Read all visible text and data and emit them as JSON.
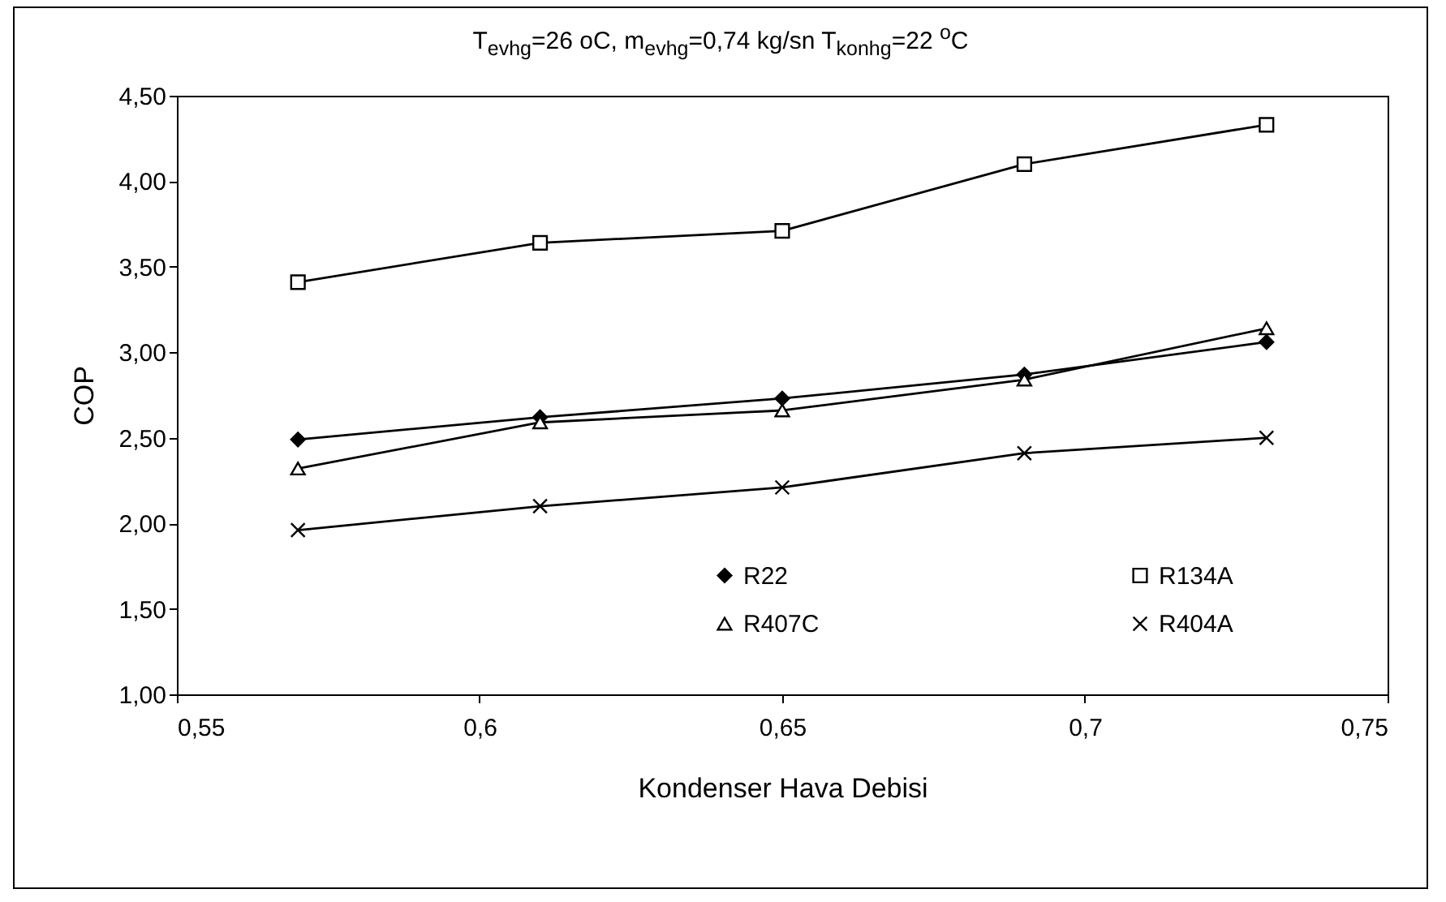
{
  "chart_data": {
    "type": "line",
    "title": "T$_{evhg}$=26 oC,  m$_{evhg}$=0,74 kg/sn   T$_{konhg}$=22 $^{o}$C",
    "xlabel": "Kondenser Hava Debisi",
    "ylabel": "COP",
    "x": [
      0.57,
      0.61,
      0.65,
      0.69,
      0.73
    ],
    "series": [
      {
        "name": "R22",
        "color": "#000000",
        "marker": "diamond",
        "values": [
          2.49,
          2.62,
          2.73,
          2.87,
          3.06
        ]
      },
      {
        "name": "R134A",
        "color": "#000000",
        "marker": "square",
        "values": [
          3.41,
          3.64,
          3.71,
          4.1,
          4.33
        ]
      },
      {
        "name": "R407C",
        "color": "#000000",
        "marker": "triangle",
        "values": [
          2.32,
          2.59,
          2.66,
          2.84,
          3.14
        ]
      },
      {
        "name": "R404A",
        "color": "#000000",
        "marker": "cross",
        "values": [
          1.96,
          2.1,
          2.21,
          2.41,
          2.5
        ]
      }
    ],
    "xlim": [
      0.55,
      0.75
    ],
    "xticks": [
      {
        "value": 0.55,
        "label": "0,55"
      },
      {
        "value": 0.6,
        "label": "0,6"
      },
      {
        "value": 0.65,
        "label": "0,65"
      },
      {
        "value": 0.7,
        "label": "0,7"
      },
      {
        "value": 0.75,
        "label": "0,75"
      }
    ],
    "ylim": [
      1,
      4.5
    ],
    "yticks": [
      {
        "value": 1,
        "label": "1,00"
      },
      {
        "value": 1.5,
        "label": "1,50"
      },
      {
        "value": 2,
        "label": "2,00"
      },
      {
        "value": 2.5,
        "label": "2,50"
      },
      {
        "value": 3,
        "label": "3,00"
      },
      {
        "value": 3.5,
        "label": "3,50"
      },
      {
        "value": 4,
        "label": "4,00"
      },
      {
        "value": 4.5,
        "label": "4,50"
      }
    ],
    "grid": false,
    "legend": "bottom",
    "line_style": "solid"
  }
}
